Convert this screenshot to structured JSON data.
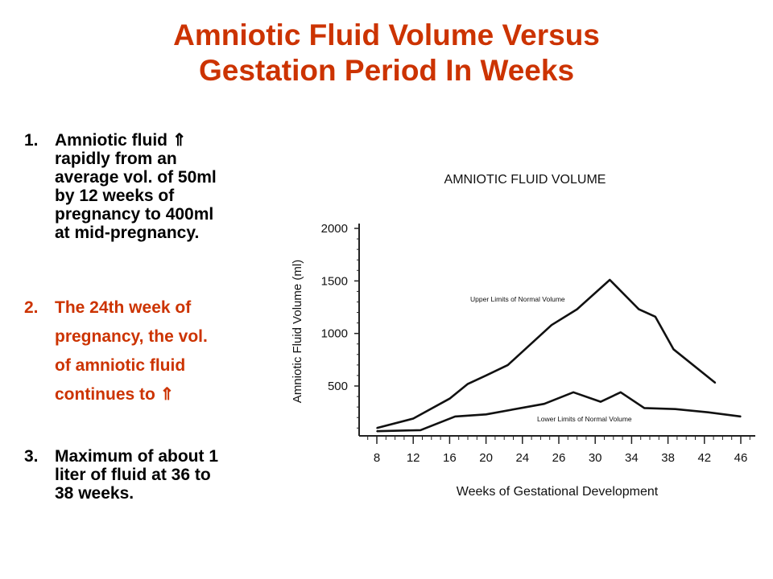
{
  "slide": {
    "title_line1": "Amniotic Fluid Volume Versus",
    "title_line2": "Gestation Period In Weeks",
    "title_color": "#cc3300",
    "point1": {
      "number": "1.",
      "lines": [
        "Amniotic fluid ⇑",
        "rapidly from an",
        "average vol. of 50ml",
        "by 12 weeks of",
        "pregnancy to 400ml",
        "at mid-pregnancy."
      ]
    },
    "point2": {
      "number": "2.",
      "lines": [
        "The 24th week of",
        "pregnancy, the vol.",
        "of amniotic fluid",
        "continues to ⇑"
      ]
    },
    "point3": {
      "number": "3.",
      "lines": [
        "Maximum of about 1",
        "liter of fluid at 36 to",
        "38 weeks."
      ]
    }
  },
  "chart_data": {
    "type": "line",
    "title": "AMNIOTIC FLUID VOLUME",
    "xlabel": "Weeks of Gestational Development",
    "ylabel": "Amniotic Fluid Volume (ml)",
    "x_ticks": [
      "8",
      "12",
      "16",
      "20",
      "24",
      "26",
      "30",
      "34",
      "38",
      "42",
      "46"
    ],
    "y_ticks": [
      "500",
      "1000",
      "1500",
      "2000"
    ],
    "ylim": [
      0,
      2000
    ],
    "grid": false,
    "series": [
      {
        "name": "Upper Limits of Normal Volume",
        "points": [
          {
            "tick": 0.0,
            "y": 100
          },
          {
            "tick": 1.0,
            "y": 190
          },
          {
            "tick": 2.0,
            "y": 380
          },
          {
            "tick": 2.5,
            "y": 520
          },
          {
            "tick": 3.0,
            "y": 600
          },
          {
            "tick": 3.6,
            "y": 700
          },
          {
            "tick": 4.8,
            "y": 1080
          },
          {
            "tick": 5.5,
            "y": 1230
          },
          {
            "tick": 6.4,
            "y": 1510
          },
          {
            "tick": 7.2,
            "y": 1230
          },
          {
            "tick": 7.65,
            "y": 1160
          },
          {
            "tick": 8.15,
            "y": 850
          },
          {
            "tick": 9.3,
            "y": 530
          }
        ]
      },
      {
        "name": "Lower Limits of Normal Volume",
        "points": [
          {
            "tick": 0.0,
            "y": 70
          },
          {
            "tick": 1.2,
            "y": 80
          },
          {
            "tick": 2.15,
            "y": 210
          },
          {
            "tick": 3.0,
            "y": 230
          },
          {
            "tick": 4.6,
            "y": 330
          },
          {
            "tick": 5.4,
            "y": 440
          },
          {
            "tick": 6.15,
            "y": 350
          },
          {
            "tick": 6.7,
            "y": 440
          },
          {
            "tick": 7.35,
            "y": 290
          },
          {
            "tick": 8.2,
            "y": 280
          },
          {
            "tick": 9.1,
            "y": 250
          },
          {
            "tick": 10.0,
            "y": 210
          }
        ]
      }
    ]
  }
}
